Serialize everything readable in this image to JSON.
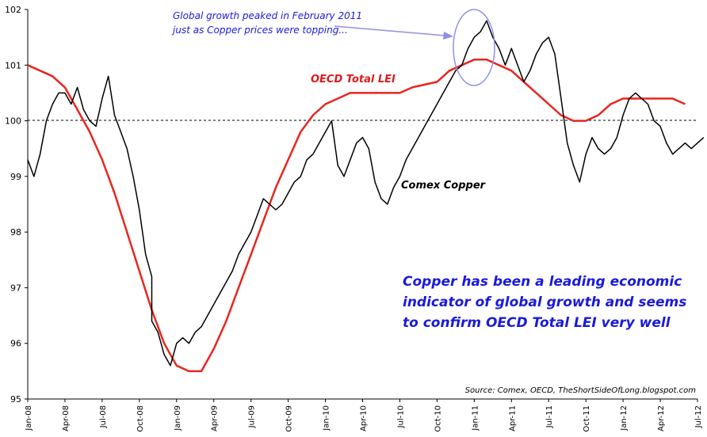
{
  "chart_data": {
    "type": "line",
    "ylim": [
      95,
      102
    ],
    "y_ticks": [
      "102",
      "101",
      "100",
      "99",
      "98",
      "97",
      "96",
      "95"
    ],
    "x_ticks": [
      "Jan-08",
      "Apr-08",
      "Jul-08",
      "Oct-08",
      "Jan-09",
      "Apr-09",
      "Jul-09",
      "Oct-09",
      "Jan-10",
      "Apr-10",
      "Jul-10",
      "Oct-10",
      "Jan-11",
      "Apr-11",
      "Jul-11",
      "Oct-11",
      "Jan-12",
      "Apr-12",
      "Jul-12"
    ],
    "reference_line": 100,
    "series": [
      {
        "name": "OECD Total LEI",
        "color": "#e8261e",
        "points": [
          [
            "Jan-08",
            101.0
          ],
          [
            "Mar-08",
            100.8
          ],
          [
            "Apr-08",
            100.6
          ],
          [
            "May-08",
            100.2
          ],
          [
            "Jun-08",
            99.8
          ],
          [
            "Jul-08",
            99.3
          ],
          [
            "Aug-08",
            98.7
          ],
          [
            "Sep-08",
            98.0
          ],
          [
            "Oct-08",
            97.3
          ],
          [
            "Nov-08",
            96.6
          ],
          [
            "Dec-08",
            96.0
          ],
          [
            "Jan-09",
            95.6
          ],
          [
            "Feb-09",
            95.5
          ],
          [
            "Mar-09",
            95.5
          ],
          [
            "Apr-09",
            95.9
          ],
          [
            "May-09",
            96.4
          ],
          [
            "Jun-09",
            97.0
          ],
          [
            "Jul-09",
            97.6
          ],
          [
            "Aug-09",
            98.2
          ],
          [
            "Sep-09",
            98.8
          ],
          [
            "Oct-09",
            99.3
          ],
          [
            "Nov-09",
            99.8
          ],
          [
            "Dec-09",
            100.1
          ],
          [
            "Jan-10",
            100.3
          ],
          [
            "Feb-10",
            100.4
          ],
          [
            "Mar-10",
            100.5
          ],
          [
            "Jul-10",
            100.5
          ],
          [
            "Aug-10",
            100.6
          ],
          [
            "Oct-10",
            100.7
          ],
          [
            "Nov-10",
            100.9
          ],
          [
            "Dec-10",
            101.0
          ],
          [
            "Jan-11",
            101.1
          ],
          [
            "Feb-11",
            101.1
          ],
          [
            "Apr-11",
            100.9
          ],
          [
            "May-11",
            100.7
          ],
          [
            "Jun-11",
            100.5
          ],
          [
            "Jul-11",
            100.3
          ],
          [
            "Aug-11",
            100.1
          ],
          [
            "Sep-11",
            100.0
          ],
          [
            "Oct-11",
            100.0
          ],
          [
            "Nov-11",
            100.1
          ],
          [
            "Dec-11",
            100.3
          ],
          [
            "Jan-12",
            100.4
          ],
          [
            "Apr-12",
            100.4
          ],
          [
            "May-12",
            100.4
          ],
          [
            "Jun-12",
            100.3
          ]
        ]
      },
      {
        "name": "Comex Copper",
        "color": "#000000",
        "points": [
          [
            "Jan-08",
            99.3
          ],
          [
            "Jan-08",
            99.0
          ],
          [
            "Feb-08",
            99.4
          ],
          [
            "Feb-08",
            100.0
          ],
          [
            "Mar-08",
            100.3
          ],
          [
            "Mar-08",
            100.5
          ],
          [
            "Apr-08",
            100.5
          ],
          [
            "Apr-08",
            100.3
          ],
          [
            "May-08",
            100.6
          ],
          [
            "May-08",
            100.2
          ],
          [
            "Jun-08",
            100.0
          ],
          [
            "Jun-08",
            99.9
          ],
          [
            "Jul-08",
            100.4
          ],
          [
            "Jul-08",
            100.8
          ],
          [
            "Aug-08",
            100.1
          ],
          [
            "Aug-08",
            99.8
          ],
          [
            "Sep-08",
            99.5
          ],
          [
            "Sep-08",
            99.0
          ],
          [
            "Oct-08",
            98.4
          ],
          [
            "Oct-08",
            97.6
          ],
          [
            "Oct-08",
            97.2
          ],
          [
            "Nov-08",
            96.4
          ],
          [
            "Nov-08",
            96.2
          ],
          [
            "Dec-08",
            95.8
          ],
          [
            "Dec-08",
            95.6
          ],
          [
            "Jan-09",
            96.0
          ],
          [
            "Jan-09",
            96.1
          ],
          [
            "Feb-09",
            96.0
          ],
          [
            "Feb-09",
            96.2
          ],
          [
            "Mar-09",
            96.3
          ],
          [
            "Mar-09",
            96.5
          ],
          [
            "Apr-09",
            96.7
          ],
          [
            "Apr-09",
            96.9
          ],
          [
            "May-09",
            97.1
          ],
          [
            "May-09",
            97.3
          ],
          [
            "Jun-09",
            97.6
          ],
          [
            "Jun-09",
            97.8
          ],
          [
            "Jul-09",
            98.0
          ],
          [
            "Jul-09",
            98.3
          ],
          [
            "Aug-09",
            98.6
          ],
          [
            "Aug-09",
            98.5
          ],
          [
            "Sep-09",
            98.4
          ],
          [
            "Sep-09",
            98.5
          ],
          [
            "Oct-09",
            98.7
          ],
          [
            "Oct-09",
            98.9
          ],
          [
            "Nov-09",
            99.0
          ],
          [
            "Nov-09",
            99.3
          ],
          [
            "Dec-09",
            99.4
          ],
          [
            "Dec-09",
            99.6
          ],
          [
            "Jan-10",
            99.8
          ],
          [
            "Jan-10",
            100.0
          ],
          [
            "Feb-10",
            99.2
          ],
          [
            "Feb-10",
            99.0
          ],
          [
            "Mar-10",
            99.3
          ],
          [
            "Mar-10",
            99.6
          ],
          [
            "Apr-10",
            99.7
          ],
          [
            "Apr-10",
            99.5
          ],
          [
            "May-10",
            98.9
          ],
          [
            "May-10",
            98.6
          ],
          [
            "Jun-10",
            98.5
          ],
          [
            "Jun-10",
            98.8
          ],
          [
            "Jul-10",
            99.0
          ],
          [
            "Jul-10",
            99.3
          ],
          [
            "Aug-10",
            99.5
          ],
          [
            "Aug-10",
            99.7
          ],
          [
            "Sep-10",
            99.9
          ],
          [
            "Sep-10",
            100.1
          ],
          [
            "Oct-10",
            100.3
          ],
          [
            "Oct-10",
            100.5
          ],
          [
            "Nov-10",
            100.7
          ],
          [
            "Nov-10",
            100.9
          ],
          [
            "Dec-10",
            101.0
          ],
          [
            "Dec-10",
            101.3
          ],
          [
            "Jan-11",
            101.5
          ],
          [
            "Jan-11",
            101.6
          ],
          [
            "Feb-11",
            101.8
          ],
          [
            "Feb-11",
            101.5
          ],
          [
            "Mar-11",
            101.3
          ],
          [
            "Mar-11",
            101.0
          ],
          [
            "Apr-11",
            101.3
          ],
          [
            "Apr-11",
            101.0
          ],
          [
            "May-11",
            100.7
          ],
          [
            "May-11",
            100.9
          ],
          [
            "Jun-11",
            101.2
          ],
          [
            "Jun-11",
            101.4
          ],
          [
            "Jul-11",
            101.5
          ],
          [
            "Jul-11",
            101.2
          ],
          [
            "Aug-11",
            100.4
          ],
          [
            "Aug-11",
            99.6
          ],
          [
            "Sep-11",
            99.2
          ],
          [
            "Sep-11",
            98.9
          ],
          [
            "Oct-11",
            99.4
          ],
          [
            "Oct-11",
            99.7
          ],
          [
            "Nov-11",
            99.5
          ],
          [
            "Nov-11",
            99.4
          ],
          [
            "Dec-11",
            99.5
          ],
          [
            "Dec-11",
            99.7
          ],
          [
            "Jan-12",
            100.1
          ],
          [
            "Jan-12",
            100.4
          ],
          [
            "Feb-12",
            100.5
          ],
          [
            "Feb-12",
            100.4
          ],
          [
            "Mar-12",
            100.3
          ],
          [
            "Mar-12",
            100.0
          ],
          [
            "Apr-12",
            99.9
          ],
          [
            "Apr-12",
            99.6
          ],
          [
            "May-12",
            99.4
          ],
          [
            "May-12",
            99.5
          ],
          [
            "Jun-12",
            99.6
          ],
          [
            "Jun-12",
            99.5
          ],
          [
            "Jul-12",
            99.6
          ],
          [
            "Jul-12",
            99.7
          ]
        ]
      }
    ],
    "annotations": {
      "peak_note_line1": "Global growth peaked in February 2011",
      "peak_note_line2": "just as Copper prices were topping...",
      "lei_label": "OECD Total LEI",
      "copper_label": "Comex Copper",
      "summary_line1": "Copper has been a leading economic",
      "summary_line2": "indicator of global growth and seems",
      "summary_line3": "to confirm OECD Total LEI very well",
      "source": "Source: Comex, OECD, TheShortSideOfLong.blogspot.com"
    },
    "colors": {
      "annotation_blue": "#1a1adb",
      "highlight_ellipse": "#8f8fe8",
      "reference_line": "#000000"
    }
  }
}
